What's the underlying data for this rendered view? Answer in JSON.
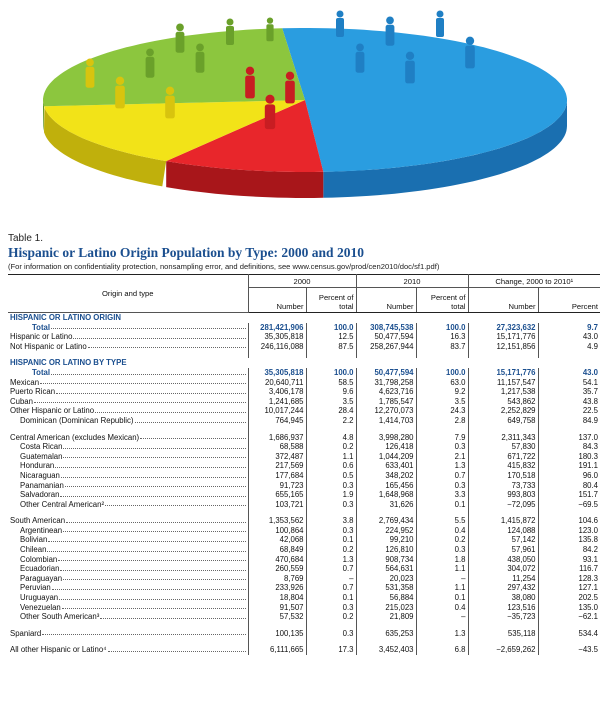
{
  "header": {
    "table_number": "Table 1.",
    "title": "Hispanic or Latino Origin Population by Type: 2000 and 2010",
    "note": "(For information on confidentiality protection, nonsampling error, and definitions, see www.census.gov/prod/cen2010/doc/sf1.pdf)"
  },
  "table": {
    "columns": {
      "label": "Origin and type",
      "groups": [
        "2000",
        "2010",
        "Change, 2000 to 2010¹"
      ],
      "sub": [
        "Number",
        "Percent of total",
        "Number",
        "Percent of total",
        "Number",
        "Percent"
      ]
    },
    "sections": [
      [
        [
          "HISPANIC OR LATINO ORIGIN"
        ],
        [
          "Total",
          "281,421,906",
          "100.0",
          "308,745,538",
          "100.0",
          "27,323,632",
          "9.7"
        ],
        [
          "Hispanic or Latino",
          "35,305,818",
          "12.5",
          "50,477,594",
          "16.3",
          "15,171,776",
          "43.0"
        ],
        [
          "Not Hispanic or Latino",
          "246,116,088",
          "87.5",
          "258,267,944",
          "83.7",
          "12,151,856",
          "4.9"
        ]
      ],
      [
        [
          "HISPANIC OR LATINO BY TYPE"
        ],
        [
          "Total",
          "35,305,818",
          "100.0",
          "50,477,594",
          "100.0",
          "15,171,776",
          "43.0"
        ],
        [
          "Mexican",
          "20,640,711",
          "58.5",
          "31,798,258",
          "63.0",
          "11,157,547",
          "54.1"
        ],
        [
          "Puerto Rican",
          "3,406,178",
          "9.6",
          "4,623,716",
          "9.2",
          "1,217,538",
          "35.7"
        ],
        [
          "Cuban",
          "1,241,685",
          "3.5",
          "1,785,547",
          "3.5",
          "543,862",
          "43.8"
        ],
        [
          "Other Hispanic or Latino",
          "10,017,244",
          "28.4",
          "12,270,073",
          "24.3",
          "2,252,829",
          "22.5"
        ],
        [
          "Dominican (Dominican Republic)",
          "764,945",
          "2.2",
          "1,414,703",
          "2.8",
          "649,758",
          "84.9"
        ]
      ],
      [
        [
          "Central American (excludes Mexican)",
          "1,686,937",
          "4.8",
          "3,998,280",
          "7.9",
          "2,311,343",
          "137.0"
        ],
        [
          "Costa Rican",
          "68,588",
          "0.2",
          "126,418",
          "0.3",
          "57,830",
          "84.3"
        ],
        [
          "Guatemalan",
          "372,487",
          "1.1",
          "1,044,209",
          "2.1",
          "671,722",
          "180.3"
        ],
        [
          "Honduran",
          "217,569",
          "0.6",
          "633,401",
          "1.3",
          "415,832",
          "191.1"
        ],
        [
          "Nicaraguan",
          "177,684",
          "0.5",
          "348,202",
          "0.7",
          "170,518",
          "96.0"
        ],
        [
          "Panamanian",
          "91,723",
          "0.3",
          "165,456",
          "0.3",
          "73,733",
          "80.4"
        ],
        [
          "Salvadoran",
          "655,165",
          "1.9",
          "1,648,968",
          "3.3",
          "993,803",
          "151.7"
        ],
        [
          "Other Central American²",
          "103,721",
          "0.3",
          "31,626",
          "0.1",
          "−72,095",
          "−69.5"
        ]
      ],
      [
        [
          "South American",
          "1,353,562",
          "3.8",
          "2,769,434",
          "5.5",
          "1,415,872",
          "104.6"
        ],
        [
          "Argentinean",
          "100,864",
          "0.3",
          "224,952",
          "0.4",
          "124,088",
          "123.0"
        ],
        [
          "Bolivian",
          "42,068",
          "0.1",
          "99,210",
          "0.2",
          "57,142",
          "135.8"
        ],
        [
          "Chilean",
          "68,849",
          "0.2",
          "126,810",
          "0.3",
          "57,961",
          "84.2"
        ],
        [
          "Colombian",
          "470,684",
          "1.3",
          "908,734",
          "1.8",
          "438,050",
          "93.1"
        ],
        [
          "Ecuadorian",
          "260,559",
          "0.7",
          "564,631",
          "1.1",
          "304,072",
          "116.7"
        ],
        [
          "Paraguayan",
          "8,769",
          "–",
          "20,023",
          "–",
          "11,254",
          "128.3"
        ],
        [
          "Peruvian",
          "233,926",
          "0.7",
          "531,358",
          "1.1",
          "297,432",
          "127.1"
        ],
        [
          "Uruguayan",
          "18,804",
          "0.1",
          "56,884",
          "0.1",
          "38,080",
          "202.5"
        ],
        [
          "Venezuelan",
          "91,507",
          "0.3",
          "215,023",
          "0.4",
          "123,516",
          "135.0"
        ],
        [
          "Other South American³",
          "57,532",
          "0.2",
          "21,809",
          "–",
          "−35,723",
          "−62.1"
        ]
      ],
      [
        [
          "Spaniard",
          "100,135",
          "0.3",
          "635,253",
          "1.3",
          "535,118",
          "534.4"
        ]
      ],
      [
        [
          "All other Hispanic or Latino⁴",
          "6,111,665",
          "17.3",
          "3,452,403",
          "6.8",
          "−2,659,262",
          "−43.5"
        ]
      ]
    ]
  }
}
